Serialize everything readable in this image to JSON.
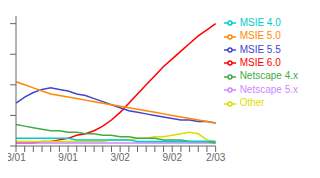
{
  "chart_data": {
    "type": "line",
    "categories": [
      "3/01",
      null,
      null,
      null,
      null,
      null,
      "9/01",
      null,
      null,
      null,
      null,
      null,
      "3/02",
      null,
      null,
      null,
      null,
      null,
      "9/02",
      null,
      null,
      null,
      null,
      "2/03"
    ],
    "series": [
      {
        "name": "MSIE 6.0",
        "color": "#ff0000",
        "values": [
          2,
          2,
          2,
          3,
          3,
          4,
          5,
          7,
          8,
          10,
          13,
          17,
          22,
          28,
          34,
          40,
          46,
          52,
          57,
          62,
          67,
          72,
          76,
          80
        ]
      },
      {
        "name": "MSIE 5.5",
        "color": "#4444cc",
        "values": [
          28,
          32,
          35,
          37,
          38,
          37,
          36,
          34,
          33,
          31,
          29,
          27,
          25,
          23,
          22,
          21,
          20,
          19,
          18,
          17,
          17,
          16,
          16,
          15
        ]
      },
      {
        "name": "MSIE 5.0",
        "color": "#ff8800",
        "values": [
          42,
          40,
          38,
          36,
          34,
          33,
          32,
          31,
          30,
          29,
          28,
          27,
          26,
          25,
          24,
          23,
          22,
          21,
          20,
          19,
          18,
          17,
          16,
          15
        ]
      },
      {
        "name": "Other",
        "color": "#dddd00",
        "values": [
          3,
          3,
          3,
          3,
          3,
          3,
          3,
          3,
          3,
          3,
          3,
          4,
          4,
          4,
          5,
          5,
          6,
          6,
          7,
          8,
          9,
          8,
          4,
          3
        ]
      },
      {
        "name": "Netscape 5.x",
        "color": "#cc88ff",
        "values": [
          2,
          2,
          2,
          2,
          2,
          2,
          2,
          2,
          2,
          2,
          2,
          2,
          2,
          2,
          2,
          2,
          2,
          2,
          2,
          2,
          2,
          2,
          2,
          2
        ]
      },
      {
        "name": "Netscape 4.x",
        "color": "#44aa44",
        "values": [
          14,
          13,
          12,
          11,
          10,
          10,
          9,
          9,
          8,
          8,
          7,
          7,
          6,
          6,
          5,
          5,
          5,
          4,
          4,
          4,
          3,
          3,
          3,
          2
        ]
      },
      {
        "name": "MSIE 4.0",
        "color": "#00cccc",
        "values": [
          5,
          5,
          5,
          5,
          5,
          5,
          5,
          4,
          4,
          4,
          4,
          4,
          4,
          4,
          3,
          3,
          3,
          3,
          3,
          3,
          3,
          3,
          3,
          3
        ]
      }
    ],
    "ylim": [
      0,
      85
    ],
    "yticks": [
      0,
      20,
      40,
      60,
      80
    ],
    "legend": "right",
    "tick_labels": "x"
  }
}
